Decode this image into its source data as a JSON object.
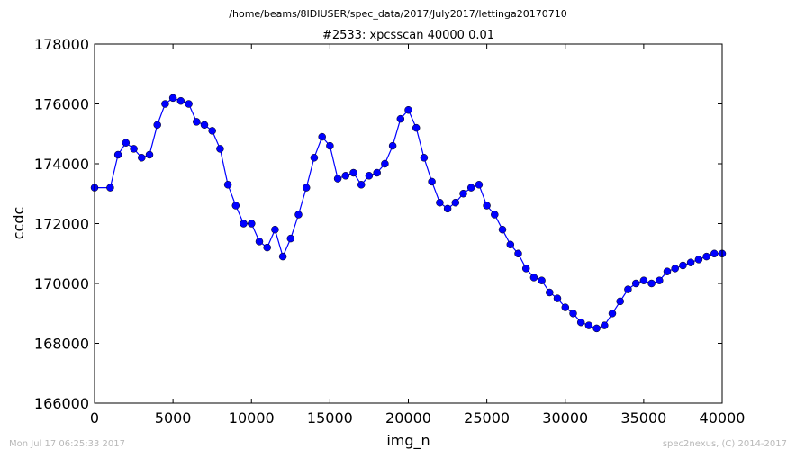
{
  "suptitle": "/home/beams/8IDIUSER/spec_data/2017/July2017/lettinga20170710",
  "footer": {
    "timestamp": "Mon Jul 17 06:25:33 2017",
    "credit": "spec2nexus, (C) 2014-2017"
  },
  "chart_data": {
    "type": "line",
    "title": "#2533: xpcsscan 40000 0.01",
    "xlabel": "img_n",
    "ylabel": "ccdc",
    "xlim": [
      0,
      40000
    ],
    "ylim": [
      166000,
      178000
    ],
    "xticks": [
      "0",
      "5000",
      "10000",
      "15000",
      "20000",
      "25000",
      "30000",
      "35000",
      "40000"
    ],
    "yticks": [
      "166000",
      "168000",
      "170000",
      "172000",
      "174000",
      "176000",
      "178000"
    ],
    "grid": false,
    "marker": "circle",
    "line_color": "#0000ff",
    "x": [
      0,
      1000,
      1500,
      2000,
      2500,
      3000,
      3500,
      4000,
      4500,
      5000,
      5500,
      6000,
      6500,
      7000,
      7500,
      8000,
      8500,
      9000,
      9500,
      10000,
      10500,
      11000,
      11500,
      12000,
      12500,
      13000,
      13500,
      14000,
      14500,
      15000,
      15500,
      16000,
      16500,
      17000,
      17500,
      18000,
      18500,
      19000,
      19500,
      20000,
      20500,
      21000,
      21500,
      22000,
      22500,
      23000,
      23500,
      24000,
      24500,
      25000,
      25500,
      26000,
      26500,
      27000,
      27500,
      28000,
      28500,
      29000,
      29500,
      30000,
      30500,
      31000,
      31500,
      32000,
      32500,
      33000,
      33500,
      34000,
      34500,
      35000,
      35500,
      36000,
      36500,
      37000,
      37500,
      38000,
      38500,
      39000,
      39500,
      40000
    ],
    "values": [
      173200,
      173200,
      174300,
      174700,
      174500,
      174200,
      174300,
      175300,
      176000,
      176200,
      176100,
      176000,
      175400,
      175300,
      175100,
      174500,
      173300,
      172600,
      172000,
      172000,
      171400,
      171200,
      171800,
      170900,
      171500,
      172300,
      173200,
      174200,
      174900,
      174600,
      173500,
      173600,
      173700,
      173300,
      173600,
      173700,
      174000,
      174600,
      175500,
      175800,
      175200,
      174200,
      173400,
      172700,
      172500,
      172700,
      173000,
      173200,
      173300,
      172600,
      172300,
      171800,
      171300,
      171000,
      170500,
      170200,
      170100,
      169700,
      169500,
      169200,
      169000,
      168700,
      168600,
      168500,
      168600,
      169000,
      169400,
      169800,
      170000,
      170100,
      170000,
      170100,
      170400,
      170500,
      170600,
      170700,
      170800,
      170900,
      171000,
      171000
    ]
  }
}
